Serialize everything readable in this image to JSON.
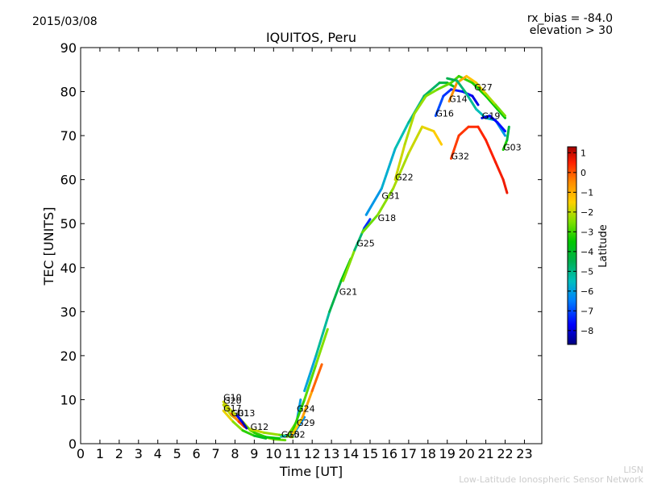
{
  "header": {
    "date": "2015/03/08",
    "bias": "rx_bias = -84.0",
    "elevation": "elevation > 30"
  },
  "footer": {
    "short": "LISN",
    "full": "Low-Latitude Ionospheric Sensor Network"
  },
  "colors": {
    "colormap": [
      "#00007f",
      "#0000ff",
      "#007fff",
      "#00bfbf",
      "#00b050",
      "#00c800",
      "#7fe000",
      "#ffd000",
      "#ff8c00",
      "#ff2000",
      "#a00000"
    ]
  },
  "chart_data": {
    "type": "line",
    "title": "IQUITOS, Peru",
    "xlabel": "Time [UT]",
    "ylabel": "TEC [UNITS]",
    "xlim": [
      0,
      23.9
    ],
    "ylim": [
      0,
      90
    ],
    "xticks": [
      0,
      1,
      2,
      3,
      4,
      5,
      6,
      7,
      8,
      9,
      10,
      11,
      12,
      13,
      14,
      15,
      16,
      17,
      18,
      19,
      20,
      21,
      22,
      23
    ],
    "yticks": [
      0,
      10,
      20,
      30,
      40,
      50,
      60,
      70,
      80,
      90
    ],
    "colorbar": {
      "label": "Latitude",
      "min": -8.7,
      "max": 1.3,
      "ticks": [
        1,
        0,
        -1,
        -2,
        -3,
        -4,
        -5,
        -6,
        -7,
        -8
      ]
    },
    "series": [
      {
        "name": "G10",
        "label_at": [
          7.4,
          10.0
        ],
        "lat_start": -2.0,
        "lat_end": -3.0,
        "points": [
          [
            7.4,
            9.5
          ],
          [
            7.8,
            7.5
          ],
          [
            8.3,
            5.5
          ],
          [
            8.8,
            3.0
          ],
          [
            9.3,
            1.8
          ],
          [
            10.0,
            1.0
          ],
          [
            10.6,
            0.8
          ]
        ]
      },
      {
        "name": "G20",
        "label_at": [
          7.4,
          9.3
        ],
        "lat_start": -2.0,
        "lat_end": -4.0,
        "points": [
          [
            7.4,
            8.8
          ],
          [
            7.8,
            6.5
          ],
          [
            8.4,
            4.5
          ],
          [
            9.0,
            2.5
          ],
          [
            9.6,
            1.5
          ],
          [
            10.3,
            1.2
          ]
        ]
      },
      {
        "name": "G17",
        "label_at": [
          7.4,
          7.5
        ],
        "lat_start": -1.5,
        "lat_end": -4.5,
        "points": [
          [
            7.4,
            7.5
          ],
          [
            7.9,
            5.0
          ],
          [
            8.4,
            3.0
          ],
          [
            9.0,
            1.8
          ],
          [
            9.6,
            1.2
          ]
        ]
      },
      {
        "name": "G01",
        "label_at": [
          7.8,
          6.4
        ],
        "lat_start": -1.0,
        "lat_end": 0.5,
        "points": [
          [
            7.8,
            6.8
          ],
          [
            8.2,
            5.0
          ],
          [
            8.5,
            3.8
          ]
        ]
      },
      {
        "name": "G13",
        "label_at": [
          8.1,
          6.4
        ],
        "lat_start": -7.5,
        "lat_end": -8.5,
        "points": [
          [
            8.1,
            6.4
          ],
          [
            8.4,
            4.8
          ],
          [
            8.6,
            3.5
          ]
        ]
      },
      {
        "name": "G12",
        "label_at": [
          8.8,
          3.3
        ],
        "lat_start": -2.0,
        "lat_end": -3.0,
        "points": [
          [
            8.8,
            3.3
          ],
          [
            9.5,
            2.5
          ],
          [
            10.3,
            2.0
          ],
          [
            11.0,
            1.5
          ]
        ]
      },
      {
        "name": "G15",
        "label_at": [
          10.4,
          1.6
        ],
        "lat_start": -5.0,
        "lat_end": -7.0,
        "points": [
          [
            10.4,
            1.6
          ],
          [
            11.0,
            2.0
          ],
          [
            11.6,
            6.0
          ]
        ]
      },
      {
        "name": "G02",
        "label_at": [
          10.7,
          1.6
        ],
        "lat_start": -1.0,
        "lat_end": -8.0,
        "points": [
          [
            10.7,
            1.6
          ],
          [
            11.2,
            5.0
          ],
          [
            11.4,
            10.0
          ]
        ]
      },
      {
        "name": "G24",
        "label_at": [
          11.2,
          7.4
        ],
        "lat_start": -3.5,
        "lat_end": -2.5,
        "points": [
          [
            11.0,
            3.0
          ],
          [
            11.6,
            10.0
          ],
          [
            12.2,
            18.0
          ],
          [
            12.8,
            26.0
          ]
        ]
      },
      {
        "name": "G29",
        "label_at": [
          11.2,
          4.2
        ],
        "lat_start": -2.0,
        "lat_end": 0.0,
        "points": [
          [
            10.9,
            1.5
          ],
          [
            11.5,
            6.0
          ],
          [
            12.0,
            12.0
          ],
          [
            12.5,
            18.0
          ]
        ]
      },
      {
        "name": "G21",
        "label_at": [
          13.4,
          34.0
        ],
        "lat_start": -6.5,
        "lat_end": -3.5,
        "points": [
          [
            11.6,
            12.0
          ],
          [
            12.2,
            20.0
          ],
          [
            12.9,
            30.0
          ],
          [
            13.5,
            37.0
          ],
          [
            14.0,
            42.0
          ]
        ]
      },
      {
        "name": "G25",
        "label_at": [
          14.3,
          45.0
        ],
        "lat_start": -1.5,
        "lat_end": -8.5,
        "points": [
          [
            13.6,
            37.0
          ],
          [
            14.2,
            44.0
          ],
          [
            14.7,
            49.0
          ],
          [
            15.0,
            51.0
          ]
        ]
      },
      {
        "name": "G18",
        "label_at": [
          15.4,
          50.8
        ],
        "lat_start": -3.0,
        "lat_end": -1.5,
        "points": [
          [
            14.6,
            48.0
          ],
          [
            15.4,
            52.0
          ],
          [
            16.2,
            58.0
          ],
          [
            17.0,
            66.0
          ],
          [
            17.7,
            72.0
          ],
          [
            18.3,
            71.0
          ],
          [
            18.7,
            68.0
          ]
        ]
      },
      {
        "name": "G31",
        "label_at": [
          15.6,
          55.8
        ],
        "lat_start": -6.5,
        "lat_end": -4.0,
        "points": [
          [
            14.8,
            52.0
          ],
          [
            15.6,
            58.0
          ],
          [
            16.3,
            67.0
          ],
          [
            17.0,
            73.0
          ],
          [
            17.8,
            79.0
          ],
          [
            18.6,
            82.0
          ],
          [
            19.0,
            82.0
          ],
          [
            19.4,
            81.0
          ]
        ]
      },
      {
        "name": "G22",
        "label_at": [
          16.3,
          60.0
        ],
        "lat_start": -2.0,
        "lat_end": -4.0,
        "points": [
          [
            16.3,
            60.0
          ],
          [
            16.8,
            68.0
          ],
          [
            17.3,
            75.0
          ],
          [
            17.9,
            79.0
          ],
          [
            18.5,
            80.5
          ],
          [
            19.2,
            82.0
          ],
          [
            19.6,
            83.5
          ],
          [
            20.3,
            82.0
          ],
          [
            21.0,
            79.0
          ],
          [
            21.6,
            76.0
          ],
          [
            22.0,
            74.0
          ]
        ]
      },
      {
        "name": "G16",
        "label_at": [
          18.4,
          74.5
        ],
        "lat_start": -7.0,
        "lat_end": -8.0,
        "points": [
          [
            18.4,
            74.5
          ],
          [
            18.8,
            79.0
          ],
          [
            19.2,
            80.5
          ],
          [
            19.8,
            80.0
          ],
          [
            20.3,
            79.0
          ],
          [
            20.6,
            77.0
          ]
        ]
      },
      {
        "name": "G14",
        "label_at": [
          19.1,
          77.8
        ],
        "lat_start": -0.5,
        "lat_end": -3.0,
        "points": [
          [
            19.1,
            77.8
          ],
          [
            19.5,
            82.0
          ],
          [
            20.0,
            83.5
          ],
          [
            20.5,
            82.0
          ],
          [
            21.0,
            79.5
          ],
          [
            21.5,
            77.0
          ],
          [
            22.0,
            74.5
          ]
        ]
      },
      {
        "name": "G27",
        "label_at": [
          20.4,
          80.5
        ],
        "lat_start": -4.5,
        "lat_end": -6.5,
        "points": [
          [
            19.0,
            83.0
          ],
          [
            19.5,
            82.5
          ],
          [
            20.0,
            79.5
          ],
          [
            20.5,
            76.0
          ],
          [
            21.0,
            74.0
          ],
          [
            21.5,
            73.5
          ],
          [
            22.0,
            70.0
          ]
        ]
      },
      {
        "name": "G19",
        "label_at": [
          20.8,
          74.0
        ],
        "lat_start": -8.0,
        "lat_end": -7.5,
        "points": [
          [
            20.8,
            74.0
          ],
          [
            21.2,
            74.5
          ],
          [
            21.6,
            73.0
          ],
          [
            22.0,
            71.0
          ]
        ]
      },
      {
        "name": "G32",
        "label_at": [
          19.2,
          64.8
        ],
        "lat_start": 0.0,
        "lat_end": 0.5,
        "points": [
          [
            19.2,
            64.8
          ],
          [
            19.6,
            70.0
          ],
          [
            20.1,
            72.0
          ],
          [
            20.6,
            72.0
          ],
          [
            21.0,
            69.0
          ],
          [
            21.5,
            64.0
          ],
          [
            21.9,
            60.0
          ],
          [
            22.1,
            57.0
          ]
        ]
      },
      {
        "name": "G03",
        "label_at": [
          21.9,
          66.8
        ],
        "lat_start": -3.0,
        "lat_end": -5.0,
        "points": [
          [
            21.9,
            66.8
          ],
          [
            22.1,
            69.0
          ],
          [
            22.2,
            72.0
          ]
        ]
      }
    ]
  }
}
